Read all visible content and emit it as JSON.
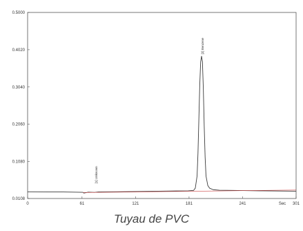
{
  "caption": "Tuyau de PVC",
  "colors": {
    "frame": "#555555",
    "trace": "#3a3a3a",
    "baseline": "#cc4444",
    "background": "#ffffff"
  },
  "chart_data": {
    "type": "line",
    "title": "",
    "xlabel": "",
    "ylabel": "",
    "x_unit_label": "Sec",
    "xlim": [
      0,
      301
    ],
    "ylim": [
      0.0108,
      0.5
    ],
    "x_ticks": [
      {
        "value": 0,
        "label": "0"
      },
      {
        "value": 61,
        "label": "61"
      },
      {
        "value": 121,
        "label": "121"
      },
      {
        "value": 181,
        "label": "181"
      },
      {
        "value": 241,
        "label": "241"
      },
      {
        "value": 301,
        "label": "301"
      }
    ],
    "y_ticks": [
      {
        "value": 0.5,
        "label": "0.5000"
      },
      {
        "value": 0.402,
        "label": "0.4020"
      },
      {
        "value": 0.304,
        "label": "0.3040"
      },
      {
        "value": 0.206,
        "label": "0.2060"
      },
      {
        "value": 0.108,
        "label": "0.1080"
      },
      {
        "value": 0.0108,
        "label": "0.0108"
      }
    ],
    "peaks": [
      {
        "label": "[1] Unknown",
        "x": 77,
        "y": 0.05
      },
      {
        "label": "[2] Benzene",
        "x": 196,
        "y": 0.39
      }
    ],
    "series": [
      {
        "x": [
          0,
          40,
          62,
          63,
          65,
          68,
          75,
          80,
          100,
          120,
          140,
          160,
          180,
          186,
          188,
          190,
          191,
          192,
          193,
          194,
          195,
          196,
          197,
          198,
          199,
          200,
          202,
          204,
          208,
          215,
          230,
          260,
          301
        ],
        "y": [
          0.0285,
          0.028,
          0.027,
          0.025,
          0.026,
          0.0275,
          0.0268,
          0.0282,
          0.0285,
          0.029,
          0.0297,
          0.0305,
          0.031,
          0.032,
          0.038,
          0.07,
          0.13,
          0.22,
          0.31,
          0.37,
          0.385,
          0.37,
          0.3,
          0.2,
          0.12,
          0.07,
          0.045,
          0.038,
          0.034,
          0.0325,
          0.032,
          0.031,
          0.03
        ]
      },
      {
        "x": [
          62,
          301
        ],
        "y": [
          0.0265,
          0.033
        ]
      }
    ]
  }
}
